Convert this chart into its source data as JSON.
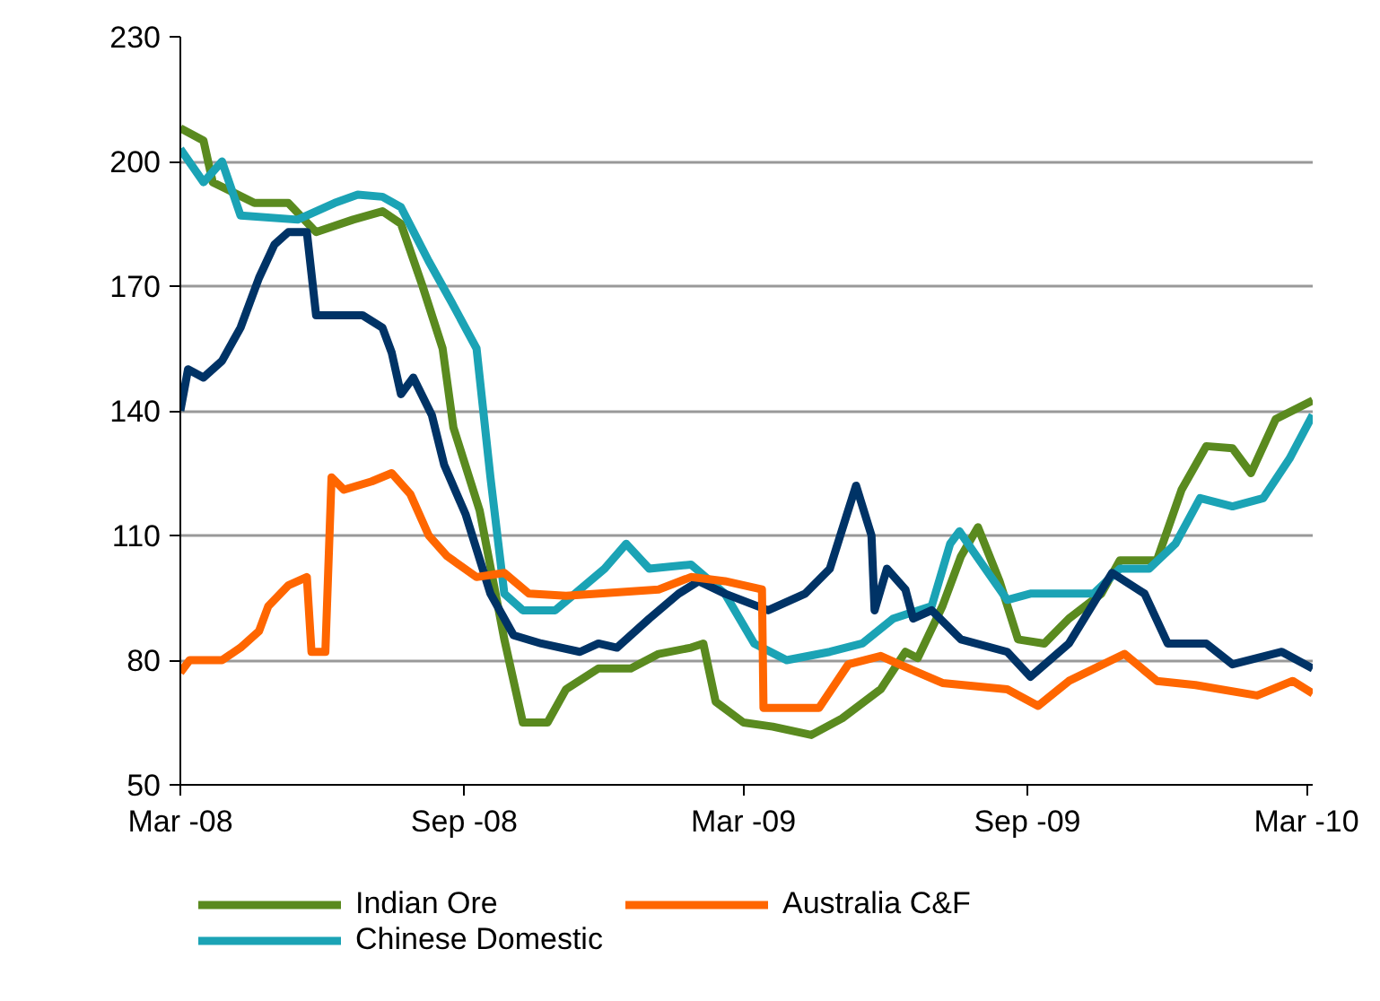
{
  "chart_data": {
    "type": "line",
    "xlim": [
      "2008-03-01",
      "2010-03-05"
    ],
    "ylim": [
      50,
      230
    ],
    "yticks": [
      50,
      80,
      110,
      140,
      170,
      200,
      230
    ],
    "xticks": [
      {
        "value": "2008-03-01",
        "label": "Mar -08"
      },
      {
        "value": "2008-09-01",
        "label": "Sep -08"
      },
      {
        "value": "2009-03-01",
        "label": "Mar -09"
      },
      {
        "value": "2009-09-01",
        "label": "Sep -09"
      },
      {
        "value": "2010-03-01",
        "label": "Mar -10"
      }
    ],
    "grid": "y",
    "legend": "bottom",
    "line_style": "solid",
    "marker": "none",
    "series": [
      {
        "name": "Indian Ore",
        "color": "#5a8a1f",
        "x": [
          "2008-03-01",
          "2008-03-16",
          "2008-03-22",
          "2008-04-18",
          "2008-05-10",
          "2008-05-28",
          "2008-06-21",
          "2008-07-10",
          "2008-07-22",
          "2008-08-05",
          "2008-08-18",
          "2008-08-25",
          "2008-09-11",
          "2008-09-27",
          "2008-10-09",
          "2008-10-25",
          "2008-11-06",
          "2008-11-27",
          "2008-12-18",
          "2009-01-05",
          "2009-01-26",
          "2009-02-03",
          "2009-02-11",
          "2009-03-01",
          "2009-03-20",
          "2009-04-14",
          "2009-05-04",
          "2009-05-29",
          "2009-06-14",
          "2009-06-22",
          "2009-07-08",
          "2009-07-20",
          "2009-07-31",
          "2009-08-14",
          "2009-08-26",
          "2009-09-12",
          "2009-09-28",
          "2009-10-19",
          "2009-10-31",
          "2009-11-24",
          "2009-12-10",
          "2009-12-26",
          "2010-01-12",
          "2010-01-24",
          "2010-02-09",
          "2010-03-05"
        ],
        "values": [
          208,
          205,
          195,
          190,
          190,
          183,
          186,
          188,
          185,
          170,
          155,
          136,
          116,
          85,
          65,
          65,
          73,
          78,
          78,
          81.5,
          83,
          84,
          70,
          65,
          64,
          62,
          66,
          73,
          82,
          80.5,
          93,
          105,
          112,
          99,
          85,
          84,
          90,
          96,
          104,
          104,
          121,
          131.5,
          131,
          125,
          138,
          142.5
        ]
      },
      {
        "name": "Chinese Domestic",
        "color": "#1ba3b5",
        "x": [
          "2008-03-01",
          "2008-03-16",
          "2008-03-28",
          "2008-04-09",
          "2008-05-16",
          "2008-06-09",
          "2008-06-24",
          "2008-07-10",
          "2008-07-22",
          "2008-08-09",
          "2008-08-24",
          "2008-09-09",
          "2008-09-18",
          "2008-09-27",
          "2008-10-09",
          "2008-10-30",
          "2008-11-15",
          "2008-12-01",
          "2008-12-15",
          "2008-12-30",
          "2009-01-26",
          "2009-02-17",
          "2009-03-08",
          "2009-03-29",
          "2009-04-26",
          "2009-05-17",
          "2009-06-06",
          "2009-07-01",
          "2009-07-13",
          "2009-07-19",
          "2009-08-01",
          "2009-08-19",
          "2009-09-03",
          "2009-10-14",
          "2009-10-31",
          "2009-11-19",
          "2009-12-06",
          "2009-12-22",
          "2010-01-12",
          "2010-02-01",
          "2010-02-18",
          "2010-03-05"
        ],
        "values": [
          203,
          195,
          200,
          187,
          186,
          190,
          192,
          191.5,
          189,
          176,
          166,
          155,
          124,
          96,
          92,
          92,
          97,
          102,
          108,
          102,
          103,
          96,
          84,
          80,
          82,
          84,
          90,
          93,
          108,
          111,
          104,
          94.5,
          96,
          96,
          102,
          102,
          108,
          119,
          117,
          119,
          128.5,
          139
        ]
      },
      {
        "color": "#003366",
        "x": [
          "2008-03-01",
          "2008-03-06",
          "2008-03-16",
          "2008-03-28",
          "2008-04-09",
          "2008-04-21",
          "2008-05-01",
          "2008-05-10",
          "2008-05-22",
          "2008-05-28",
          "2008-06-27",
          "2008-07-10",
          "2008-07-16",
          "2008-07-22",
          "2008-07-30",
          "2008-08-11",
          "2008-08-19",
          "2008-09-02",
          "2008-09-18",
          "2008-10-03",
          "2008-10-21",
          "2008-11-15",
          "2008-11-27",
          "2008-12-09",
          "2008-12-30",
          "2009-01-18",
          "2009-01-31",
          "2009-02-17",
          "2009-03-17",
          "2009-04-10",
          "2009-04-26",
          "2009-05-07",
          "2009-05-13",
          "2009-05-23",
          "2009-05-25",
          "2009-06-02",
          "2009-06-14",
          "2009-06-19",
          "2009-07-01",
          "2009-07-20",
          "2009-08-19",
          "2009-09-03",
          "2009-09-28",
          "2009-10-26",
          "2009-11-16",
          "2009-12-01",
          "2009-12-26",
          "2010-01-12",
          "2010-02-13",
          "2010-03-05"
        ],
        "values": [
          140,
          150,
          148,
          152,
          160,
          172,
          180,
          183,
          183,
          163,
          163,
          160,
          154,
          144,
          148,
          139,
          127,
          115,
          96,
          86,
          84,
          82,
          84,
          83,
          90,
          96,
          99,
          96,
          92,
          96,
          102,
          115,
          122,
          110,
          92,
          102,
          97,
          90,
          92,
          85,
          82,
          76,
          84,
          101,
          96,
          84,
          84,
          79,
          82,
          78
        ]
      },
      {
        "name": "Australia C&F",
        "color": "#ff6600",
        "x": [
          "2008-03-01",
          "2008-03-07",
          "2008-03-28",
          "2008-04-09",
          "2008-04-21",
          "2008-04-27",
          "2008-05-10",
          "2008-05-22",
          "2008-05-25",
          "2008-06-03",
          "2008-06-07",
          "2008-06-15",
          "2008-07-03",
          "2008-07-16",
          "2008-07-28",
          "2008-08-09",
          "2008-08-21",
          "2008-09-09",
          "2008-09-27",
          "2008-10-13",
          "2008-11-06",
          "2009-01-05",
          "2009-01-26",
          "2009-02-17",
          "2009-03-13",
          "2009-03-14",
          "2009-04-19",
          "2009-05-08",
          "2009-05-29",
          "2009-06-10",
          "2009-07-08",
          "2009-08-19",
          "2009-09-08",
          "2009-09-28",
          "2009-11-03",
          "2009-11-24",
          "2009-12-19",
          "2010-01-28",
          "2010-02-20",
          "2010-03-05"
        ],
        "values": [
          77,
          80,
          80,
          83,
          87,
          93,
          98,
          100,
          82,
          82,
          124,
          121,
          123,
          125,
          120,
          110,
          105,
          100,
          101,
          96,
          95.5,
          97,
          100,
          99,
          97,
          68.5,
          68.5,
          79,
          81,
          79,
          74.5,
          73,
          69,
          75,
          81.5,
          75,
          74,
          71.5,
          75,
          72
        ]
      }
    ]
  }
}
